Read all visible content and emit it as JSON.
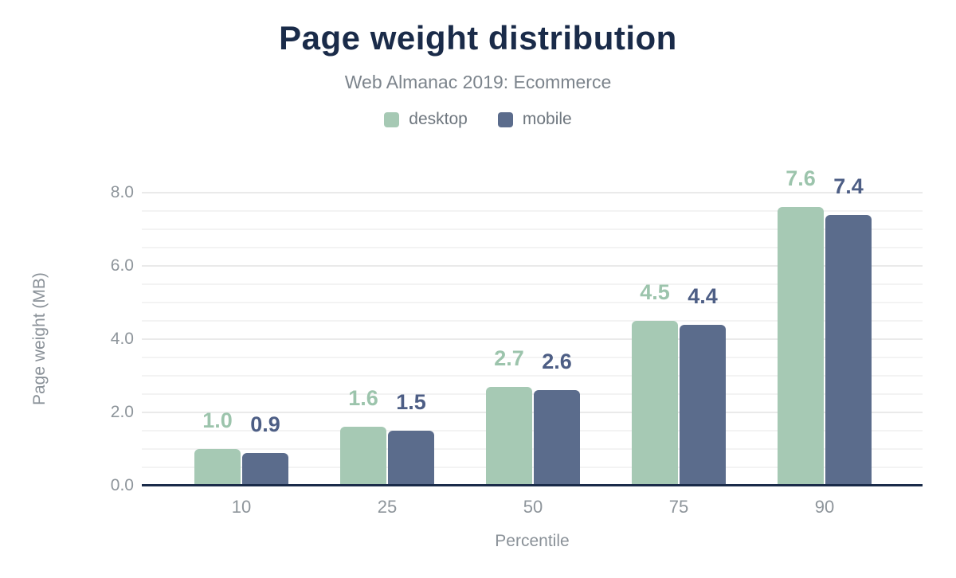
{
  "chart_data": {
    "type": "bar",
    "title": "Page weight distribution",
    "subtitle": "Web Almanac 2019: Ecommerce",
    "xlabel": "Percentile",
    "ylabel": "Page weight (MB)",
    "categories": [
      "10",
      "25",
      "50",
      "75",
      "90"
    ],
    "series": [
      {
        "name": "desktop",
        "values": [
          1.0,
          1.6,
          2.7,
          4.5,
          7.6
        ],
        "color": "#a6c9b4",
        "label_color": "#9cc4ac"
      },
      {
        "name": "mobile",
        "values": [
          0.9,
          1.5,
          2.6,
          4.4,
          7.4
        ],
        "color": "#5b6c8c",
        "label_color": "#4d5e85"
      }
    ],
    "ylim": [
      0,
      8
    ],
    "yticks": [
      0,
      2,
      4,
      6,
      8
    ],
    "ytick_labels": [
      "0.0",
      "2.0",
      "4.0",
      "6.0",
      "8.0"
    ],
    "grid": {
      "minor_interval": 0.5,
      "major_interval": 2,
      "minor_color": "#f3f3f3",
      "major_color": "#eaeaea"
    },
    "value_labels": true,
    "legend_position": "top"
  },
  "colors": {
    "title": "#1a2b49",
    "subtitle": "#7c848c",
    "axis_line": "#1a2b49",
    "tick_text": "#8e959b",
    "axis_title_text": "#8a9198",
    "legend_text": "#6e767e",
    "background": "#ffffff"
  }
}
